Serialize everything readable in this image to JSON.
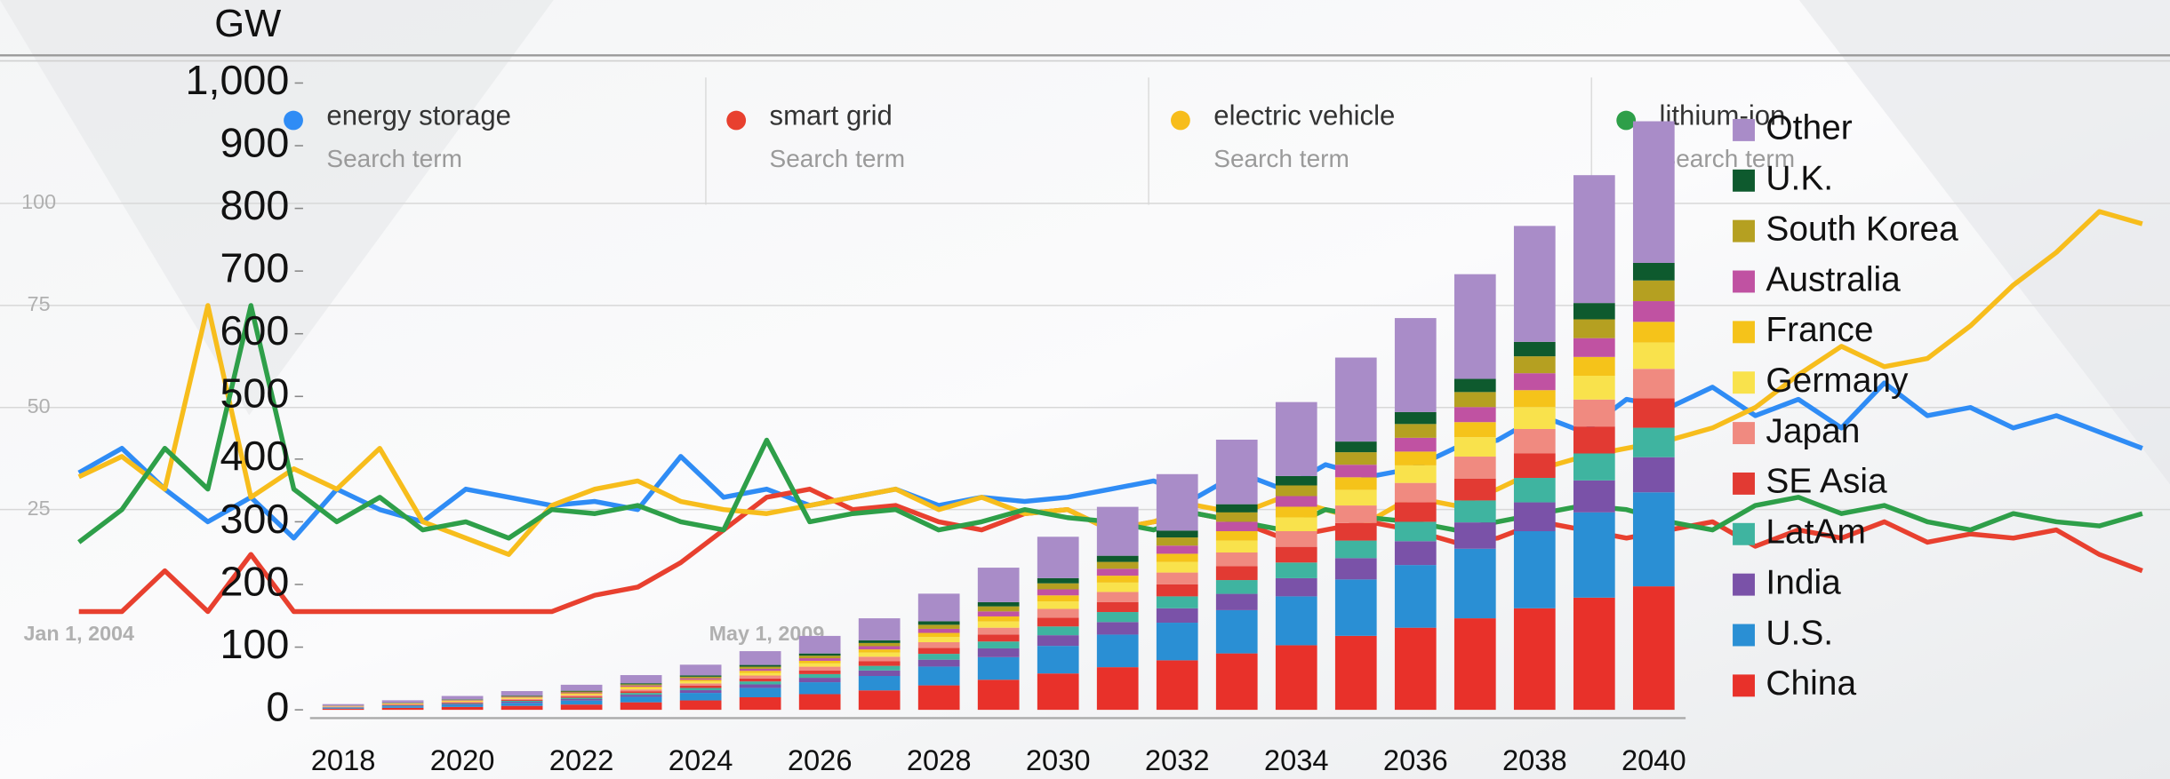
{
  "chart_data": [
    {
      "type": "line",
      "legend": [
        {
          "name": "energy storage",
          "sub": "Search term"
        },
        {
          "name": "smart grid",
          "sub": "Search term"
        },
        {
          "name": "electric vehicle",
          "sub": "Search term"
        },
        {
          "name": "lithium-ion",
          "sub": "Search term"
        }
      ],
      "categories": [
        "Jan 1, 2004",
        null,
        null,
        null,
        null,
        null,
        null,
        null,
        null,
        null,
        null,
        null,
        null,
        null,
        null,
        null,
        "May 1, 2009",
        null,
        null,
        null,
        null,
        null,
        null,
        null,
        null,
        null,
        null,
        null,
        null,
        null,
        null,
        null,
        null,
        null,
        null,
        null,
        null,
        null,
        null,
        null,
        null,
        null,
        null,
        null,
        null,
        null,
        null,
        null,
        null
      ],
      "ylim": [
        0,
        100
      ],
      "yticks": [
        25,
        50,
        75,
        100
      ],
      "grid": true,
      "series": [
        {
          "name": "energy storage",
          "color": "#2f8cf5",
          "values": [
            34,
            40,
            30,
            22,
            28,
            18,
            30,
            25,
            22,
            30,
            28,
            26,
            27,
            25,
            38,
            28,
            30,
            26,
            28,
            30,
            26,
            28,
            27,
            28,
            30,
            32,
            28,
            34,
            30,
            36,
            33,
            35,
            40,
            42,
            48,
            44,
            52,
            50,
            55,
            48,
            52,
            45,
            56,
            48,
            50,
            45,
            48,
            44,
            40
          ]
        },
        {
          "name": "smart grid",
          "color": "#e8402f",
          "values": [
            0,
            0,
            10,
            0,
            14,
            0,
            0,
            0,
            0,
            0,
            0,
            0,
            4,
            6,
            12,
            20,
            28,
            30,
            25,
            26,
            22,
            20,
            24,
            25,
            20,
            22,
            24,
            22,
            18,
            20,
            22,
            20,
            17,
            18,
            22,
            20,
            18,
            20,
            22,
            16,
            20,
            18,
            22,
            17,
            19,
            18,
            20,
            14,
            10
          ]
        },
        {
          "name": "electric vehicle",
          "color": "#f7bd1c",
          "values": [
            33,
            38,
            30,
            75,
            28,
            35,
            30,
            40,
            22,
            18,
            14,
            26,
            30,
            32,
            27,
            25,
            24,
            26,
            28,
            30,
            25,
            28,
            24,
            25,
            20,
            22,
            26,
            24,
            28,
            25,
            22,
            28,
            26,
            30,
            35,
            38,
            40,
            42,
            45,
            50,
            58,
            65,
            60,
            62,
            70,
            80,
            88,
            98,
            95
          ]
        },
        {
          "name": "lithium-ion",
          "color": "#2e9f49",
          "values": [
            17,
            25,
            40,
            30,
            75,
            30,
            22,
            28,
            20,
            22,
            18,
            25,
            24,
            26,
            22,
            20,
            42,
            22,
            24,
            25,
            20,
            22,
            25,
            23,
            22,
            20,
            24,
            22,
            20,
            25,
            23,
            22,
            20,
            22,
            24,
            26,
            25,
            22,
            20,
            26,
            28,
            24,
            26,
            22,
            20,
            24,
            22,
            21,
            24
          ]
        }
      ]
    },
    {
      "type": "stacked_bar",
      "y_label": "GW",
      "categories": [
        "2018",
        null,
        "2020",
        null,
        "2022",
        null,
        "2024",
        null,
        "2026",
        null,
        "2028",
        null,
        "2030",
        null,
        "2032",
        null,
        "2034",
        null,
        "2036",
        null,
        "2038",
        null,
        "2040"
      ],
      "ylim": [
        0,
        1000
      ],
      "yticks": [
        0,
        100,
        200,
        300,
        400,
        500,
        600,
        700,
        800,
        900,
        {
          "value": 1000,
          "label": "1,000"
        }
      ],
      "series": [
        {
          "name": "China",
          "color": "#e8312a",
          "values": [
            1.9,
            3.2,
            4.6,
            6.3,
            8.4,
            12,
            15,
            20,
            25,
            31,
            39,
            48,
            58,
            68,
            79,
            90,
            103,
            118,
            131,
            146,
            162,
            179,
            197
          ]
        },
        {
          "name": "U.S.",
          "color": "#2a8fd4",
          "values": [
            1.4,
            2.4,
            3.5,
            4.8,
            6.4,
            8.8,
            12,
            15,
            19,
            23,
            30,
            36,
            44,
            52,
            60,
            69,
            78,
            90,
            100,
            111,
            123,
            136,
            150
          ]
        },
        {
          "name": "India",
          "color": "#7a52a8",
          "values": [
            0.5,
            0.9,
            1.3,
            1.8,
            2.4,
            3.3,
            4.3,
            5.6,
            7.1,
            8.8,
            11,
            14,
            17,
            20,
            23,
            26,
            29,
            34,
            38,
            42,
            46,
            51,
            56
          ]
        },
        {
          "name": "LatAm",
          "color": "#3fb4a0",
          "values": [
            0.5,
            0.8,
            1.1,
            1.5,
            2,
            2.8,
            3.6,
            4.7,
            5.9,
            7.3,
            9.3,
            11,
            14,
            16,
            19,
            22,
            25,
            28,
            31,
            35,
            39,
            43,
            47
          ]
        },
        {
          "name": "SE Asia",
          "color": "#e23a33",
          "values": [
            0.5,
            0.8,
            1.1,
            1.5,
            2,
            2.8,
            3.6,
            4.7,
            5.9,
            7.3,
            9.3,
            11,
            14,
            16,
            19,
            22,
            25,
            28,
            31,
            35,
            39,
            43,
            47
          ]
        },
        {
          "name": "Japan",
          "color": "#f08a80",
          "values": [
            0.5,
            0.8,
            1.1,
            1.5,
            2,
            2.8,
            3.6,
            4.7,
            5.9,
            7.3,
            9.3,
            11,
            14,
            16,
            19,
            22,
            25,
            28,
            31,
            35,
            39,
            43,
            47
          ]
        },
        {
          "name": "Germany",
          "color": "#f9e24c",
          "values": [
            0.4,
            0.7,
            1,
            1.4,
            1.8,
            2.5,
            3.2,
            4.2,
            5.3,
            6.6,
            8.3,
            10,
            12,
            15,
            17,
            19,
            22,
            25,
            28,
            31,
            35,
            38,
            42
          ]
        },
        {
          "name": "France",
          "color": "#f5c31a",
          "values": [
            0.3,
            0.5,
            0.8,
            1,
            1.4,
            1.9,
            2.5,
            3.3,
            4.1,
            5.1,
            6.5,
            8,
            9.6,
            11,
            13,
            15,
            17,
            20,
            22,
            24,
            27,
            30,
            33
          ]
        },
        {
          "name": "Australia",
          "color": "#c052a2",
          "values": [
            0.3,
            0.5,
            0.8,
            1,
            1.4,
            1.9,
            2.5,
            3.3,
            4.1,
            5.1,
            6.5,
            8,
            9.6,
            11,
            13,
            15,
            17,
            20,
            22,
            24,
            27,
            30,
            33
          ]
        },
        {
          "name": "South Korea",
          "color": "#b5a021",
          "values": [
            0.3,
            0.5,
            0.8,
            1,
            1.4,
            1.9,
            2.5,
            3.3,
            4.1,
            5.1,
            6.5,
            8,
            9.6,
            11,
            13,
            15,
            17,
            20,
            22,
            24,
            27,
            30,
            33
          ]
        },
        {
          "name": "U.K.",
          "color": "#0e5a2e",
          "values": [
            0.3,
            0.5,
            0.7,
            0.9,
            1.2,
            1.7,
            2.2,
            2.8,
            3.5,
            4.4,
            5.6,
            6.8,
            8.3,
            9.8,
            11,
            13,
            15,
            17,
            19,
            21,
            23,
            26,
            28
          ]
        },
        {
          "name": "Other",
          "color": "#a98cc8",
          "values": [
            2.2,
            3.6,
            5.3,
            7.2,
            9.6,
            13,
            17,
            22,
            28,
            35,
            44,
            55,
            66,
            78,
            90,
            103,
            118,
            134,
            150,
            167,
            185,
            204,
            226
          ]
        }
      ]
    }
  ]
}
